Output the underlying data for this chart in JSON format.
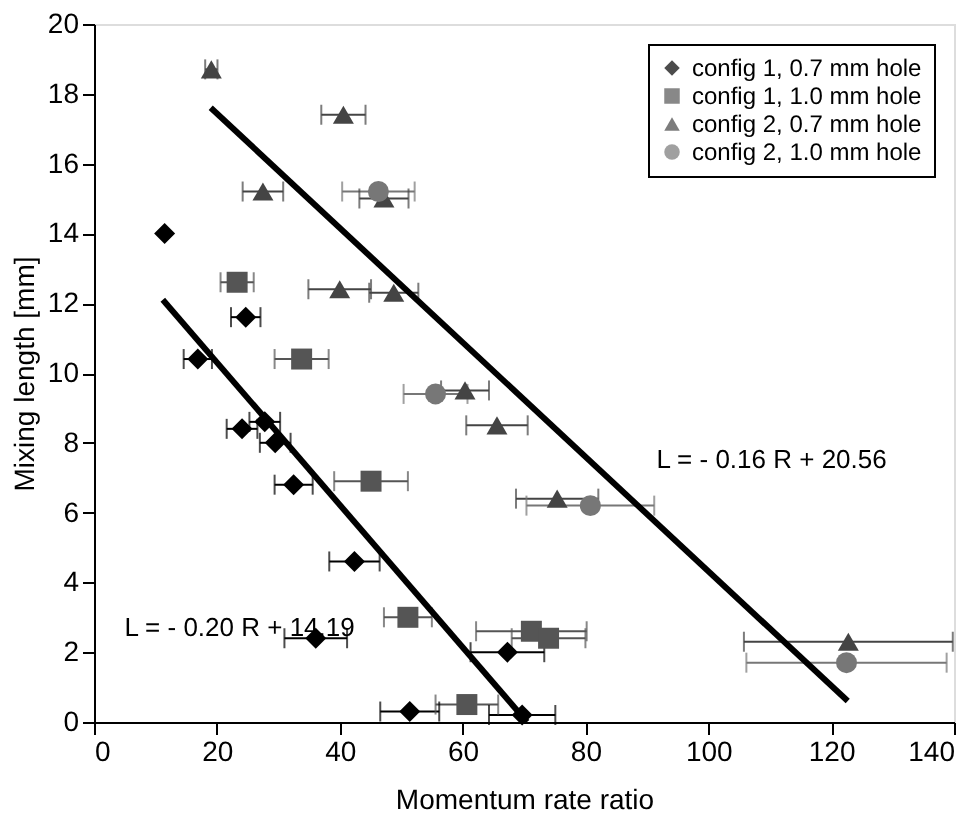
{
  "chart_data": {
    "type": "scatter",
    "xlabel": "Momentum rate ratio",
    "ylabel": "Mixing length [mm]",
    "xlim": [
      0,
      140
    ],
    "ylim": [
      0,
      20
    ],
    "xticks": [
      0,
      20,
      40,
      60,
      80,
      100,
      120,
      140
    ],
    "yticks": [
      0,
      2,
      4,
      6,
      8,
      10,
      12,
      14,
      16,
      18,
      20
    ],
    "grid": false,
    "legend": "top right",
    "series": [
      {
        "name": "config 1, 0.7 mm hole",
        "color": "#000000",
        "marker": "diamond",
        "x": [
          11.5,
          16.9,
          24.7,
          24.1,
          27.8,
          29.5,
          32.5,
          42.4,
          36.1,
          67.3,
          51.4,
          69.7
        ],
        "values": [
          14.0,
          10.4,
          11.6,
          8.4,
          8.6,
          8.0,
          6.8,
          4.6,
          2.4,
          2.0,
          0.3,
          0.2
        ],
        "xerrors": [
          null,
          2.3,
          2.4,
          2.5,
          2.5,
          2.5,
          3.1,
          4.1,
          5.1,
          6,
          4.8,
          5.4
        ]
      },
      {
        "name": "config 1, 1.0 mm hole",
        "color": "#555555",
        "marker": "square",
        "x": [
          23.3,
          33.8,
          45.1,
          51.1,
          60.7,
          71.2,
          74.0
        ],
        "values": [
          12.6,
          10.4,
          6.9,
          3.0,
          0.5,
          2.6,
          2.4
        ],
        "xerrors": [
          2.7,
          4.4,
          6,
          3.9,
          5.1,
          9,
          6
        ]
      },
      {
        "name": "config 2, 0.7 mm hole",
        "color": "#444444",
        "marker": "triangle",
        "x": [
          19.1,
          40.6,
          27.5,
          47.2,
          40.0,
          48.8,
          60.4,
          65.6,
          75.4,
          122.8
        ],
        "values": [
          18.7,
          17.4,
          15.2,
          15.0,
          12.4,
          12.3,
          9.5,
          8.5,
          6.4,
          2.3
        ],
        "xerrors": [
          1,
          3.6,
          3.3,
          4,
          5.1,
          4,
          3.9,
          5,
          6.7,
          17
        ]
      },
      {
        "name": "config 2, 1.0 mm hole",
        "color": "#777777",
        "marker": "circle",
        "x": [
          46.3,
          55.6,
          80.8,
          122.5
        ],
        "values": [
          15.2,
          9.4,
          6.2,
          1.7
        ],
        "xerrors": [
          5.9,
          5.2,
          10.4,
          16.3
        ]
      },
      {
        "type": "line",
        "color": "#000000",
        "x": [
          11.2,
          70.5
        ],
        "values": [
          12.1,
          0.0
        ]
      },
      {
        "type": "line",
        "color": "#000000",
        "x": [
          19.0,
          122.7
        ],
        "values": [
          17.6,
          0.6
        ]
      }
    ],
    "annotations": [
      "L = - 0.20 R + 14.19",
      "L = - 0.16 R + 20.56"
    ]
  }
}
